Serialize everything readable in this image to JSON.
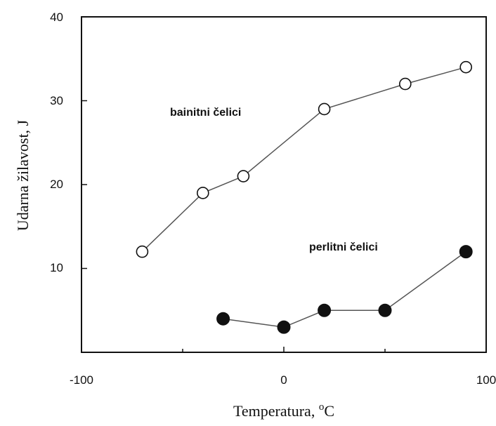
{
  "chart_data": {
    "type": "line",
    "xlabel": "Temperatura, ",
    "xlabel_unit_sup": "o",
    "xlabel_unit": "C",
    "ylabel": "Udarna žilavost, J",
    "xlim": [
      -100,
      100
    ],
    "ylim": [
      0,
      40
    ],
    "x_ticks": [
      -100,
      0,
      100
    ],
    "x_tick_labels": [
      "-100",
      "0",
      "100"
    ],
    "y_ticks": [
      10,
      20,
      30,
      40
    ],
    "y_tick_labels": [
      "10",
      "20",
      "30",
      "40"
    ],
    "grid": false,
    "series": [
      {
        "name": "bainitni čelici",
        "marker": "open-circle",
        "x": [
          -70,
          -40,
          -20,
          20,
          60,
          90
        ],
        "y": [
          12,
          19,
          21,
          29,
          32,
          34
        ]
      },
      {
        "name": "perlitni čelici",
        "marker": "filled-circle",
        "x": [
          -30,
          0,
          20,
          50,
          90
        ],
        "y": [
          4,
          3,
          5,
          5,
          12
        ]
      }
    ],
    "annotations": [
      "bainitni čelici",
      "perlitni čelici"
    ]
  }
}
